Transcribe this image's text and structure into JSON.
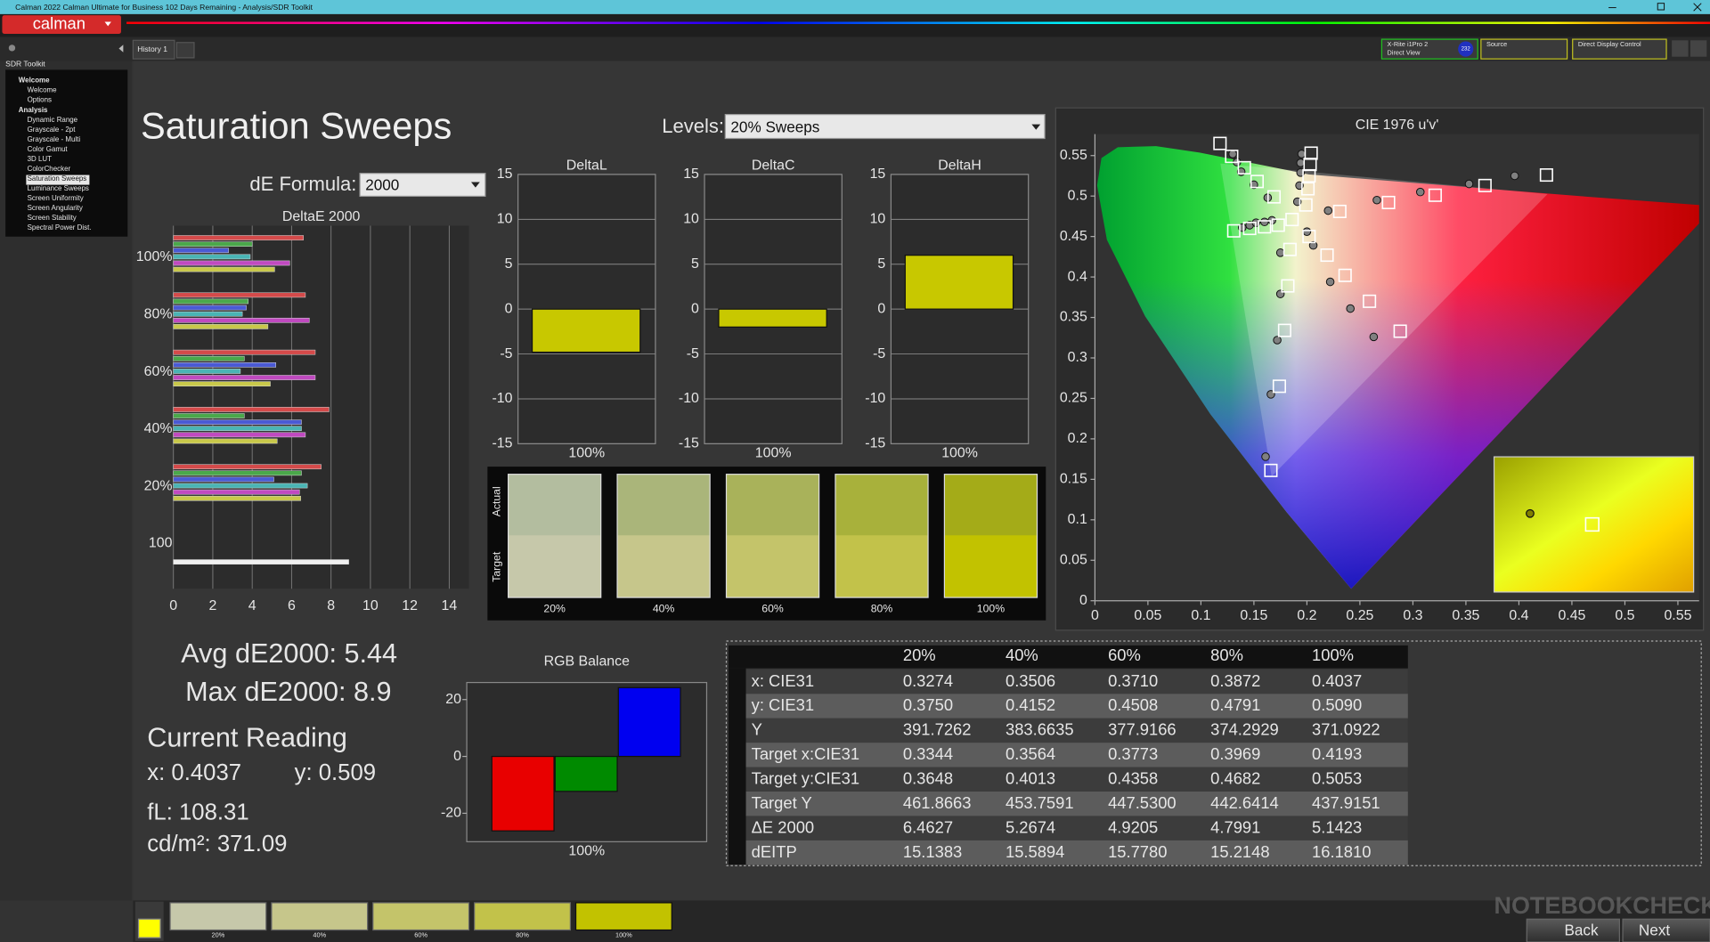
{
  "window": {
    "title": "Calman 2022 Calman Ultimate for Business 102 Days Remaining  - Analysis/SDR Toolkit"
  },
  "app": {
    "logo": "calman",
    "tab": "History 1",
    "meter": [
      "X-Rite i1Pro 2",
      "Direct View"
    ],
    "meter_id": "232",
    "source": "Source",
    "display": "Direct Display Control"
  },
  "sidebar": {
    "title": "SDR Toolkit",
    "groups": [
      {
        "root": "Welcome",
        "children": [
          "Welcome",
          "Options"
        ]
      },
      {
        "root": "Analysis",
        "children": [
          "Dynamic Range",
          "Grayscale - 2pt",
          "Grayscale - Multi",
          "Color Gamut",
          "3D LUT",
          "ColorChecker",
          "Saturation Sweeps",
          "Luminance Sweeps",
          "Screen Uniformity",
          "Screen Angularity",
          "Screen Stability",
          "Spectral Power Dist."
        ]
      }
    ]
  },
  "page": {
    "title": "Saturation Sweeps",
    "levels_label": "Levels:",
    "levels_value": "20% Sweeps",
    "formula_label": "dE Formula:",
    "formula_value": "2000"
  },
  "stats": {
    "avg": "Avg dE2000: 5.44",
    "max": "Max dE2000: 8.9",
    "reading_title": "Current Reading",
    "x": "x: 0.4037",
    "y": "y: 0.509",
    "fl": "fL: 108.31",
    "cdm2": "cd/m²: 371.09"
  },
  "chart_data": [
    {
      "type": "bar",
      "orientation": "horizontal",
      "title": "DeltaE 2000",
      "categories": [
        "100%",
        "80%",
        "60%",
        "40%",
        "20%",
        "100"
      ],
      "series": [
        {
          "color": "#d44a4a",
          "values": [
            6.6,
            6.7,
            7.2,
            7.9,
            7.5,
            null
          ]
        },
        {
          "color": "#4aa84a",
          "values": [
            4.0,
            3.8,
            3.6,
            3.6,
            6.5,
            null
          ]
        },
        {
          "color": "#4a5ad4",
          "values": [
            2.8,
            3.7,
            5.2,
            6.5,
            5.1,
            null
          ]
        },
        {
          "color": "#4ab4b4",
          "values": [
            3.9,
            3.5,
            3.4,
            6.5,
            6.8,
            null
          ]
        },
        {
          "color": "#c04ac0",
          "values": [
            5.9,
            6.9,
            7.2,
            6.7,
            6.4,
            null
          ]
        },
        {
          "color": "#c8c84a",
          "values": [
            5.14,
            4.8,
            4.92,
            5.27,
            6.46,
            null
          ]
        },
        {
          "color": "#f0f0f0",
          "values": [
            null,
            null,
            null,
            null,
            null,
            8.9
          ]
        }
      ],
      "xlim": [
        0,
        15
      ],
      "xticks": [
        0,
        2,
        4,
        6,
        8,
        10,
        12,
        14
      ],
      "grid": true
    },
    {
      "type": "bar",
      "title": "DeltaL",
      "categories": [
        "100%"
      ],
      "values": [
        -4.8
      ],
      "color": "#c8c800",
      "ylim": [
        -15,
        15
      ],
      "yticks": [
        -15,
        -10,
        -5,
        0,
        5,
        10,
        15
      ],
      "grid": true
    },
    {
      "type": "bar",
      "title": "DeltaC",
      "categories": [
        "100%"
      ],
      "values": [
        -2.0
      ],
      "color": "#c8c800",
      "ylim": [
        -15,
        15
      ],
      "yticks": [
        -15,
        -10,
        -5,
        0,
        5,
        10,
        15
      ],
      "grid": true
    },
    {
      "type": "bar",
      "title": "DeltaH",
      "categories": [
        "100%"
      ],
      "values": [
        6.0
      ],
      "color": "#c8c800",
      "ylim": [
        -15,
        15
      ],
      "yticks": [
        -15,
        -10,
        -5,
        0,
        5,
        10,
        15
      ],
      "grid": true
    },
    {
      "type": "bar",
      "title": "RGB Balance",
      "categories": [
        "100%"
      ],
      "series": [
        {
          "color": "#e80000",
          "values": [
            -26.2
          ]
        },
        {
          "color": "#008a00",
          "values": [
            -12.3
          ]
        },
        {
          "color": "#0000f0",
          "values": [
            24.2
          ]
        }
      ],
      "ylim": [
        -30,
        26
      ],
      "yticks": [
        -20,
        0,
        20
      ],
      "grid": false
    },
    {
      "type": "scatter",
      "title": "CIE 1976 u'v'",
      "xlim": [
        0,
        0.57
      ],
      "ylim": [
        0,
        0.59
      ],
      "xticks": [
        0,
        0.05,
        0.1,
        0.15,
        0.2,
        0.25,
        0.3,
        0.35,
        0.4,
        0.45,
        0.5,
        0.55
      ],
      "yticks": [
        0,
        0.05,
        0.1,
        0.15,
        0.2,
        0.25,
        0.3,
        0.35,
        0.4,
        0.45,
        0.5,
        0.55
      ],
      "series": [
        {
          "marker": "circle",
          "color": "#808080",
          "x": [
            0.22,
            0.266,
            0.307,
            0.353,
            0.396,
            0.163,
            0.15,
            0.138,
            0.134,
            0.13,
            0.175,
            0.175,
            0.172,
            0.166,
            0.161,
            0.139,
            0.146,
            0.152,
            0.16,
            0.167,
            0.2,
            0.206,
            0.222,
            0.241,
            0.263,
            0.191,
            0.193,
            0.194,
            0.194,
            0.195
          ],
          "values": [
            0.482,
            0.495,
            0.505,
            0.515,
            0.525,
            0.498,
            0.514,
            0.53,
            0.542,
            0.552,
            0.43,
            0.379,
            0.322,
            0.255,
            0.178,
            0.461,
            0.464,
            0.467,
            0.468,
            0.47,
            0.456,
            0.439,
            0.394,
            0.361,
            0.326,
            0.493,
            0.513,
            0.529,
            0.541,
            0.552
          ]
        },
        {
          "marker": "square",
          "color": "#ffffff",
          "x": [
            0.186,
            0.231,
            0.277,
            0.321,
            0.368,
            0.426,
            0.169,
            0.153,
            0.141,
            0.129,
            0.118,
            0.184,
            0.182,
            0.179,
            0.174,
            0.166,
            0.173,
            0.16,
            0.146,
            0.131,
            0.202,
            0.219,
            0.236,
            0.259,
            0.288,
            0.199,
            0.201,
            0.202,
            0.203,
            0.204
          ],
          "values": [
            0.471,
            0.481,
            0.492,
            0.501,
            0.513,
            0.526,
            0.499,
            0.518,
            0.535,
            0.549,
            0.565,
            0.434,
            0.389,
            0.334,
            0.265,
            0.161,
            0.464,
            0.462,
            0.46,
            0.457,
            0.45,
            0.427,
            0.402,
            0.37,
            0.333,
            0.489,
            0.509,
            0.525,
            0.539,
            0.553
          ]
        }
      ]
    }
  ],
  "swatches": {
    "row_labels": [
      "Actual",
      "Target"
    ],
    "labels": [
      "20%",
      "40%",
      "60%",
      "80%",
      "100%"
    ],
    "actual": [
      "#b3bd9f",
      "#aab57a",
      "#a9b25a",
      "#a8b13b",
      "#a4ab18"
    ],
    "target": [
      "#c6c8aa",
      "#c6c68b",
      "#c4c46a",
      "#c2c24a",
      "#c2c200"
    ]
  },
  "table": {
    "header": [
      "20%",
      "40%",
      "60%",
      "80%",
      "100%"
    ],
    "rows": [
      [
        "x: CIE31",
        "0.3274",
        "0.3506",
        "0.3710",
        "0.3872",
        "0.4037"
      ],
      [
        "y: CIE31",
        "0.3750",
        "0.4152",
        "0.4508",
        "0.4791",
        "0.5090"
      ],
      [
        "Y",
        "391.7262",
        "383.6635",
        "377.9166",
        "374.2929",
        "371.0922"
      ],
      [
        "Target x:CIE31",
        "0.3344",
        "0.3564",
        "0.3773",
        "0.3969",
        "0.4193"
      ],
      [
        "Target y:CIE31",
        "0.3648",
        "0.4013",
        "0.4358",
        "0.4682",
        "0.5053"
      ],
      [
        "Target Y",
        "461.8663",
        "453.7591",
        "447.5300",
        "442.6414",
        "437.9151"
      ],
      [
        "ΔE 2000",
        "6.4627",
        "5.2674",
        "4.9205",
        "4.7991",
        "5.1423"
      ],
      [
        "dEITP",
        "15.1383",
        "15.5894",
        "15.7780",
        "15.2148",
        "16.1810"
      ]
    ]
  },
  "bottom_bar": {
    "labels": [
      "20%",
      "40%",
      "60%",
      "80%",
      "100%"
    ],
    "colors": [
      "#c6c8aa",
      "#c6c68b",
      "#c4c46a",
      "#c2c24a",
      "#c2c200"
    ],
    "buttons": [
      "Back",
      "Next"
    ]
  },
  "watermark": "NOTEBOOKCHECK"
}
